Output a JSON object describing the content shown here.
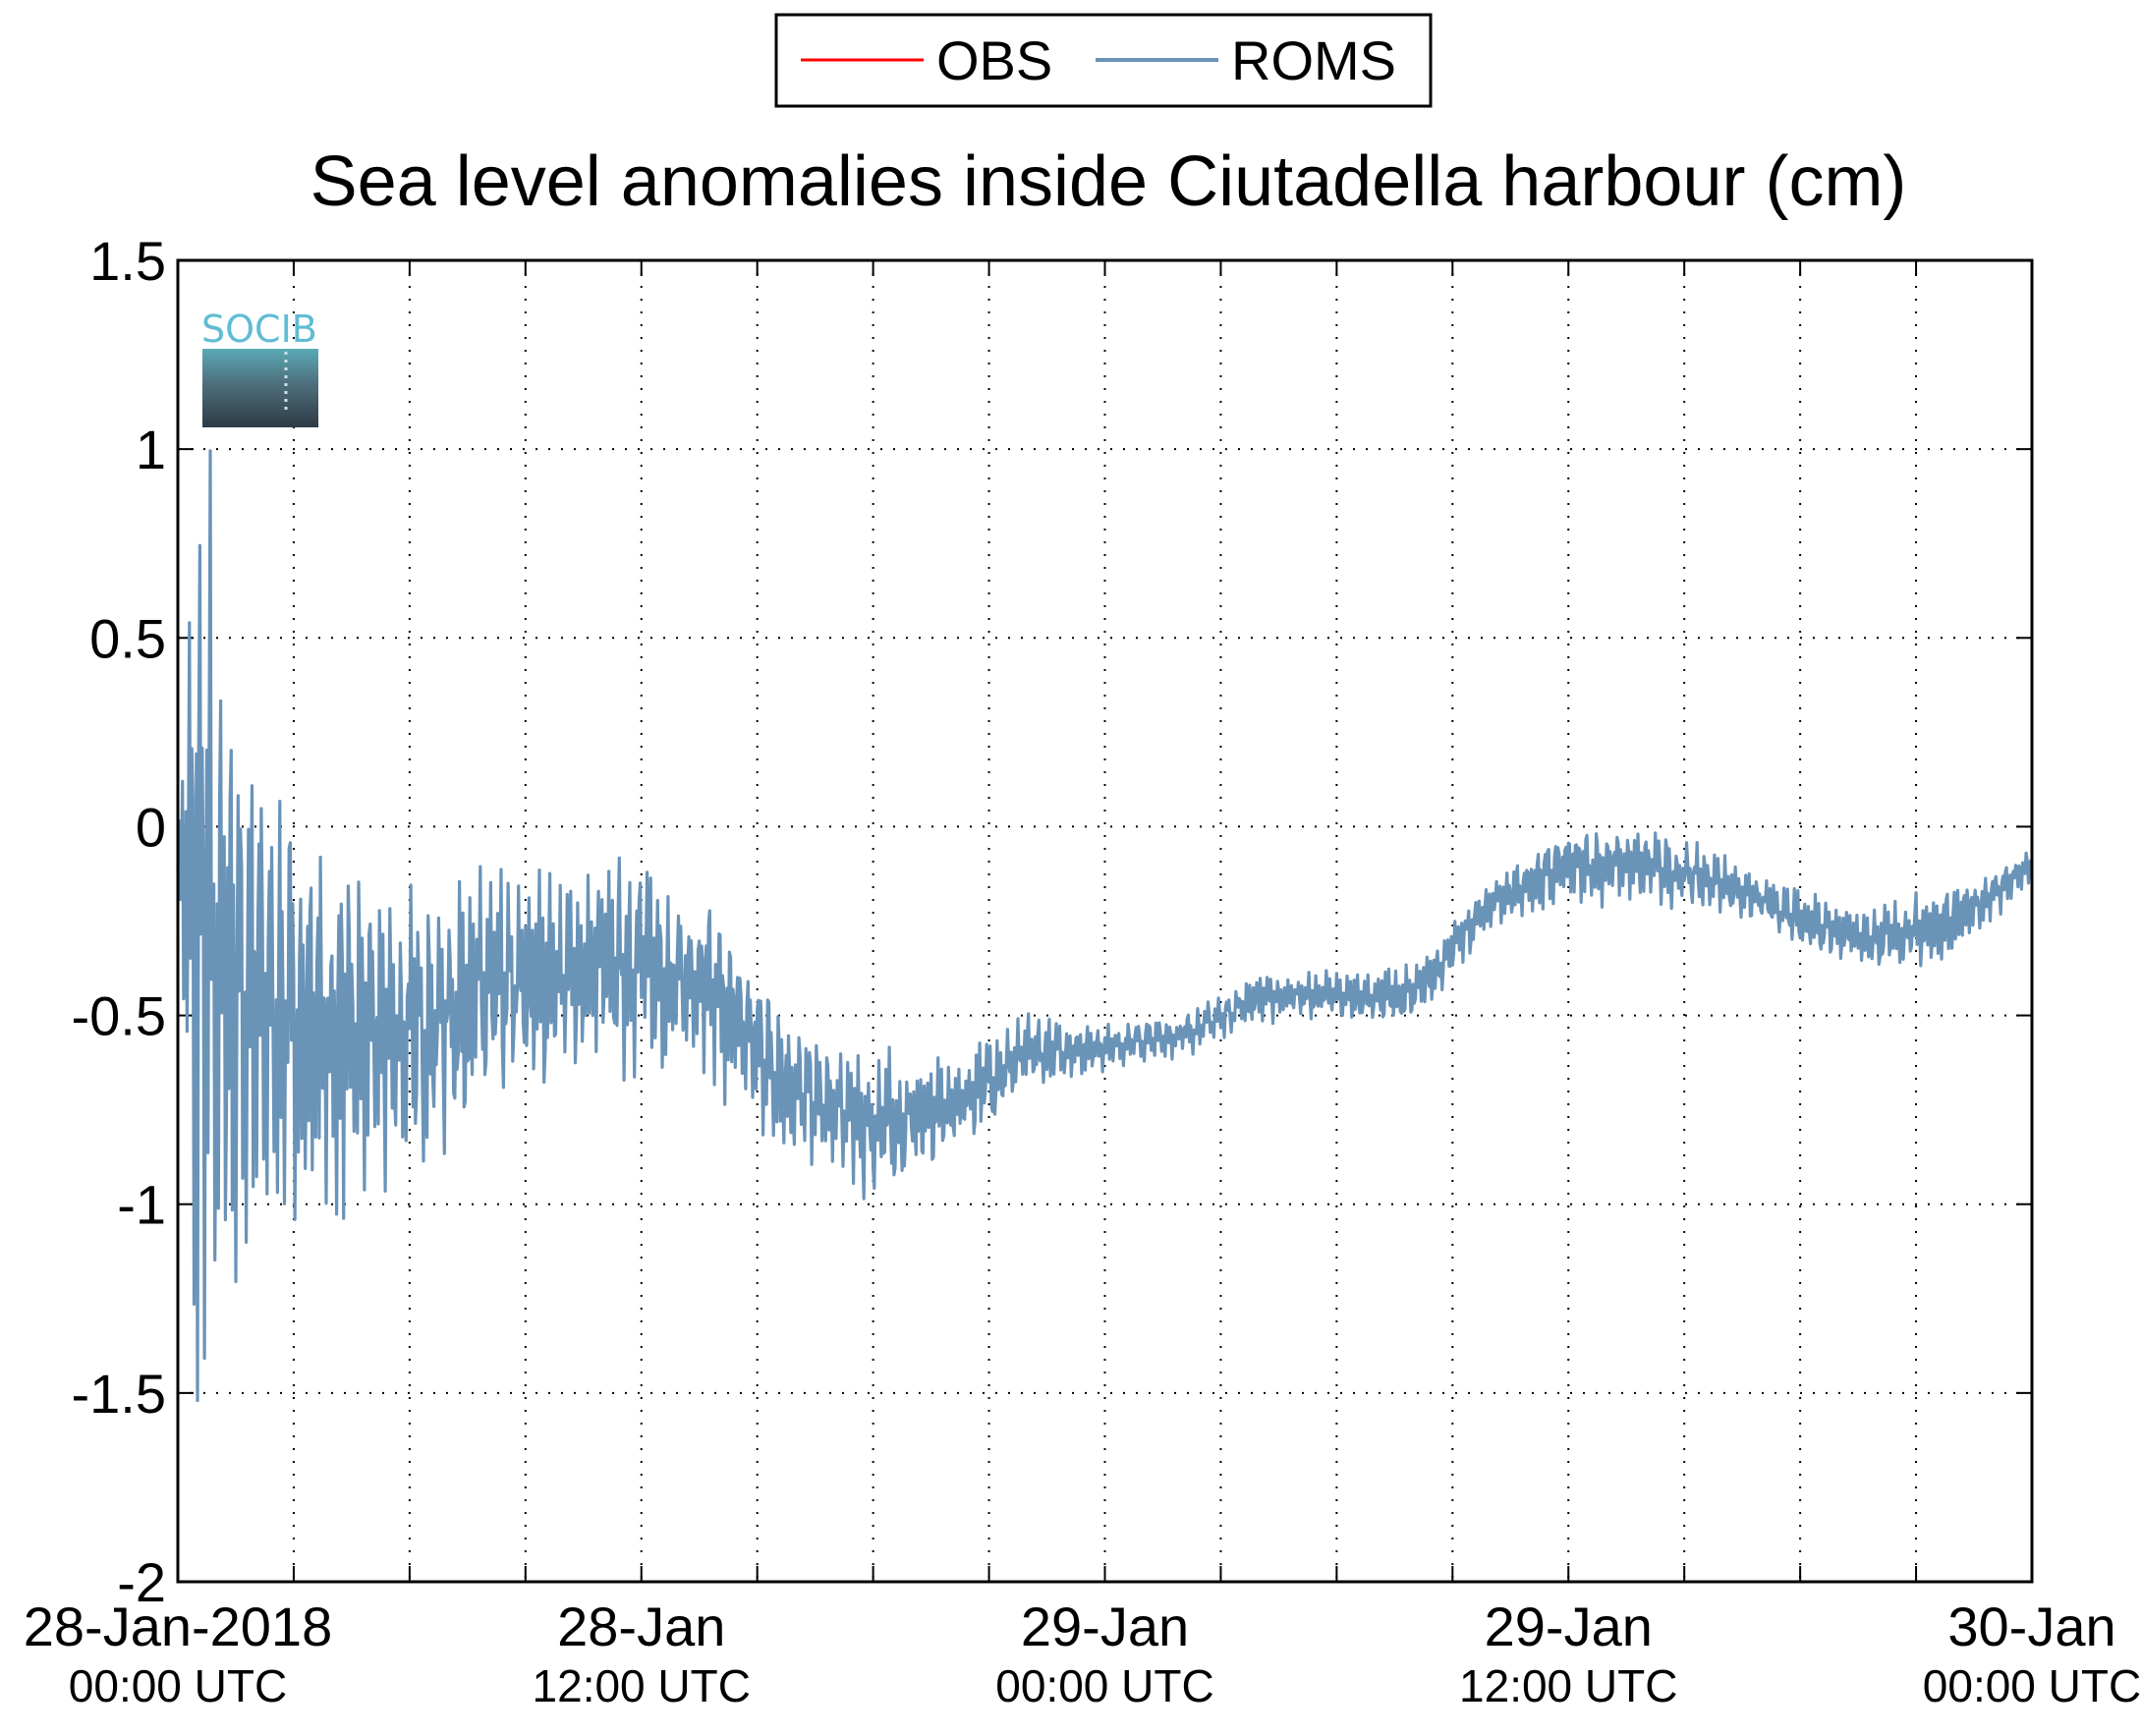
{
  "chart_data": {
    "type": "line",
    "title": "Sea level anomalies inside Ciutadella harbour (cm)",
    "xlabel": "",
    "ylabel": "",
    "x_range": [
      "2018-01-28T00:00Z",
      "2018-01-30T00:00Z"
    ],
    "ylim": [
      -2,
      1.5
    ],
    "y_ticks": [
      "1.5",
      "1",
      "0.5",
      "0",
      "-0.5",
      "-1",
      "-1.5",
      "-2"
    ],
    "x_ticks": [
      {
        "date": "28-Jan-2018",
        "time": "00:00 UTC"
      },
      {
        "date": "28-Jan",
        "time": "12:00 UTC"
      },
      {
        "date": "29-Jan",
        "time": "00:00 UTC"
      },
      {
        "date": "29-Jan",
        "time": "12:00 UTC"
      },
      {
        "date": "30-Jan",
        "time": "00:00 UTC"
      }
    ],
    "grid": true,
    "legend_position": "top-center",
    "logo": {
      "text": "SOCIB",
      "text_color": "#5fbcd3"
    },
    "series": [
      {
        "name": "OBS",
        "color": "#ff0000",
        "values": []
      },
      {
        "name": "ROMS",
        "color": "#6a93b8",
        "envelope_note": "high-frequency oscillation; values below are the approximate envelope (center, amplitude) per time",
        "x": [
          "2018-01-28T00:00Z",
          "2018-01-28T00:30Z",
          "2018-01-28T01:00Z",
          "2018-01-28T01:30Z",
          "2018-01-28T02:00Z",
          "2018-01-28T03:00Z",
          "2018-01-28T04:00Z",
          "2018-01-28T05:00Z",
          "2018-01-28T06:00Z",
          "2018-01-28T08:00Z",
          "2018-01-28T10:00Z",
          "2018-01-28T12:00Z",
          "2018-01-28T14:00Z",
          "2018-01-28T16:00Z",
          "2018-01-28T18:00Z",
          "2018-01-28T20:00Z",
          "2018-01-28T22:00Z",
          "2018-01-29T00:00Z",
          "2018-01-29T02:00Z",
          "2018-01-29T04:00Z",
          "2018-01-29T06:00Z",
          "2018-01-29T08:00Z",
          "2018-01-29T10:00Z",
          "2018-01-29T12:00Z",
          "2018-01-29T14:00Z",
          "2018-01-29T16:00Z",
          "2018-01-29T18:00Z",
          "2018-01-29T20:00Z",
          "2018-01-29T22:00Z",
          "2018-01-30T00:00Z"
        ],
        "center": [
          -0.1,
          -0.3,
          -0.35,
          -0.4,
          -0.45,
          -0.5,
          -0.55,
          -0.55,
          -0.55,
          -0.45,
          -0.4,
          -0.35,
          -0.45,
          -0.7,
          -0.8,
          -0.75,
          -0.6,
          -0.58,
          -0.55,
          -0.45,
          -0.45,
          -0.45,
          -0.2,
          -0.1,
          -0.1,
          -0.15,
          -0.25,
          -0.3,
          -0.25,
          -0.1
        ],
        "amplitude": [
          0.05,
          1.5,
          1.3,
          0.9,
          0.75,
          0.55,
          0.5,
          0.45,
          0.4,
          0.35,
          0.25,
          0.3,
          0.25,
          0.2,
          0.2,
          0.15,
          0.1,
          0.06,
          0.06,
          0.07,
          0.07,
          0.08,
          0.08,
          0.1,
          0.1,
          0.08,
          0.08,
          0.09,
          0.1,
          0.05
        ]
      }
    ]
  }
}
